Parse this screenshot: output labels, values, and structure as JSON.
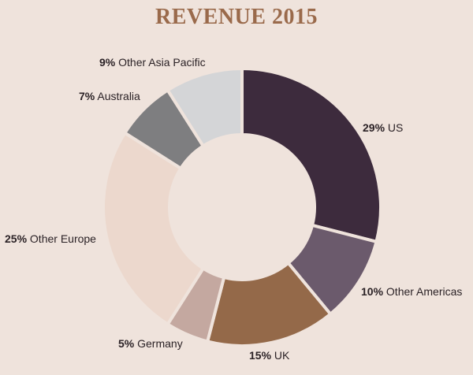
{
  "chart_data": {
    "type": "pie",
    "title": "REVENUE 2015",
    "slices": [
      {
        "label": "US",
        "value": 29,
        "percent_text": "29%",
        "color": "#3d2b3d"
      },
      {
        "label": "Other Americas",
        "value": 10,
        "percent_text": "10%",
        "color": "#6b5a6c"
      },
      {
        "label": "UK",
        "value": 15,
        "percent_text": "15%",
        "color": "#946949"
      },
      {
        "label": "Germany",
        "value": 5,
        "percent_text": "5%",
        "color": "#c4a8a0"
      },
      {
        "label": "Other Europe",
        "value": 25,
        "percent_text": "25%",
        "color": "#ecd8cd"
      },
      {
        "label": "Australia",
        "value": 7,
        "percent_text": "7%",
        "color": "#7e7e80"
      },
      {
        "label": "Other Asia Pacific",
        "value": 9,
        "percent_text": "9%",
        "color": "#d4d5d7"
      }
    ],
    "donut": true,
    "legend": "none"
  },
  "colors": {
    "background": "#efe3dc",
    "title": "#9a6a4b"
  }
}
